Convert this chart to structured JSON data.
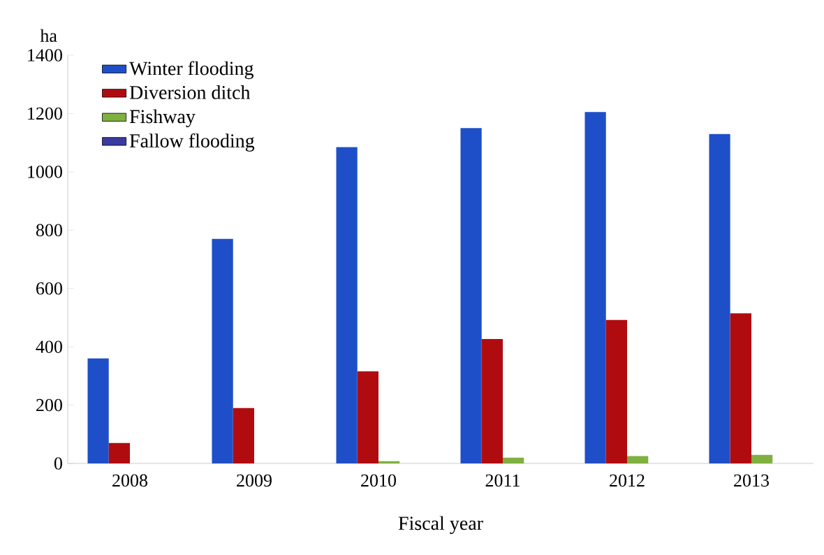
{
  "chart_data": {
    "type": "bar",
    "ylabel": "ha",
    "xlabel": "Fiscal year",
    "categories": [
      "2008",
      "2009",
      "2010",
      "2011",
      "2012",
      "2013"
    ],
    "series": [
      {
        "name": "Winter flooding",
        "color": "#1f4fc8",
        "values": [
          360,
          770,
          1085,
          1150,
          1205,
          1130
        ]
      },
      {
        "name": "Diversion ditch",
        "color": "#b00c10",
        "values": [
          70,
          190,
          316,
          427,
          492,
          515
        ]
      },
      {
        "name": "Fishway",
        "color": "#7fb040",
        "values": [
          0,
          0,
          8,
          20,
          25,
          30
        ]
      },
      {
        "name": "Fallow flooding",
        "color": "#3a3aa0",
        "values": [
          0,
          0,
          0,
          0,
          0,
          0
        ]
      }
    ],
    "ylim": [
      0,
      1400
    ],
    "yticks": [
      0,
      200,
      400,
      600,
      800,
      1000,
      1200,
      1400
    ],
    "legend": "top left",
    "grid": false
  }
}
